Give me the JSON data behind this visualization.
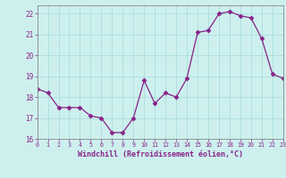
{
  "x": [
    0,
    1,
    2,
    3,
    4,
    5,
    6,
    7,
    8,
    9,
    10,
    11,
    12,
    13,
    14,
    15,
    16,
    17,
    18,
    19,
    20,
    21,
    22,
    23
  ],
  "y": [
    18.4,
    18.2,
    17.5,
    17.5,
    17.5,
    17.1,
    17.0,
    16.3,
    16.3,
    17.0,
    18.8,
    17.7,
    18.2,
    18.0,
    18.9,
    21.1,
    21.2,
    22.0,
    22.1,
    21.9,
    21.8,
    20.8,
    19.1,
    18.9
  ],
  "xlim": [
    0,
    23
  ],
  "ylim": [
    16,
    22.4
  ],
  "yticks": [
    16,
    17,
    18,
    19,
    20,
    21,
    22
  ],
  "xticks": [
    0,
    1,
    2,
    3,
    4,
    5,
    6,
    7,
    8,
    9,
    10,
    11,
    12,
    13,
    14,
    15,
    16,
    17,
    18,
    19,
    20,
    21,
    22,
    23
  ],
  "xlabel": "Windchill (Refroidissement éolien,°C)",
  "line_color": "#882288",
  "marker": "D",
  "marker_size": 2.5,
  "bg_color": "#cdf0ee",
  "grid_color": "#aadddd",
  "spine_color": "#888888"
}
